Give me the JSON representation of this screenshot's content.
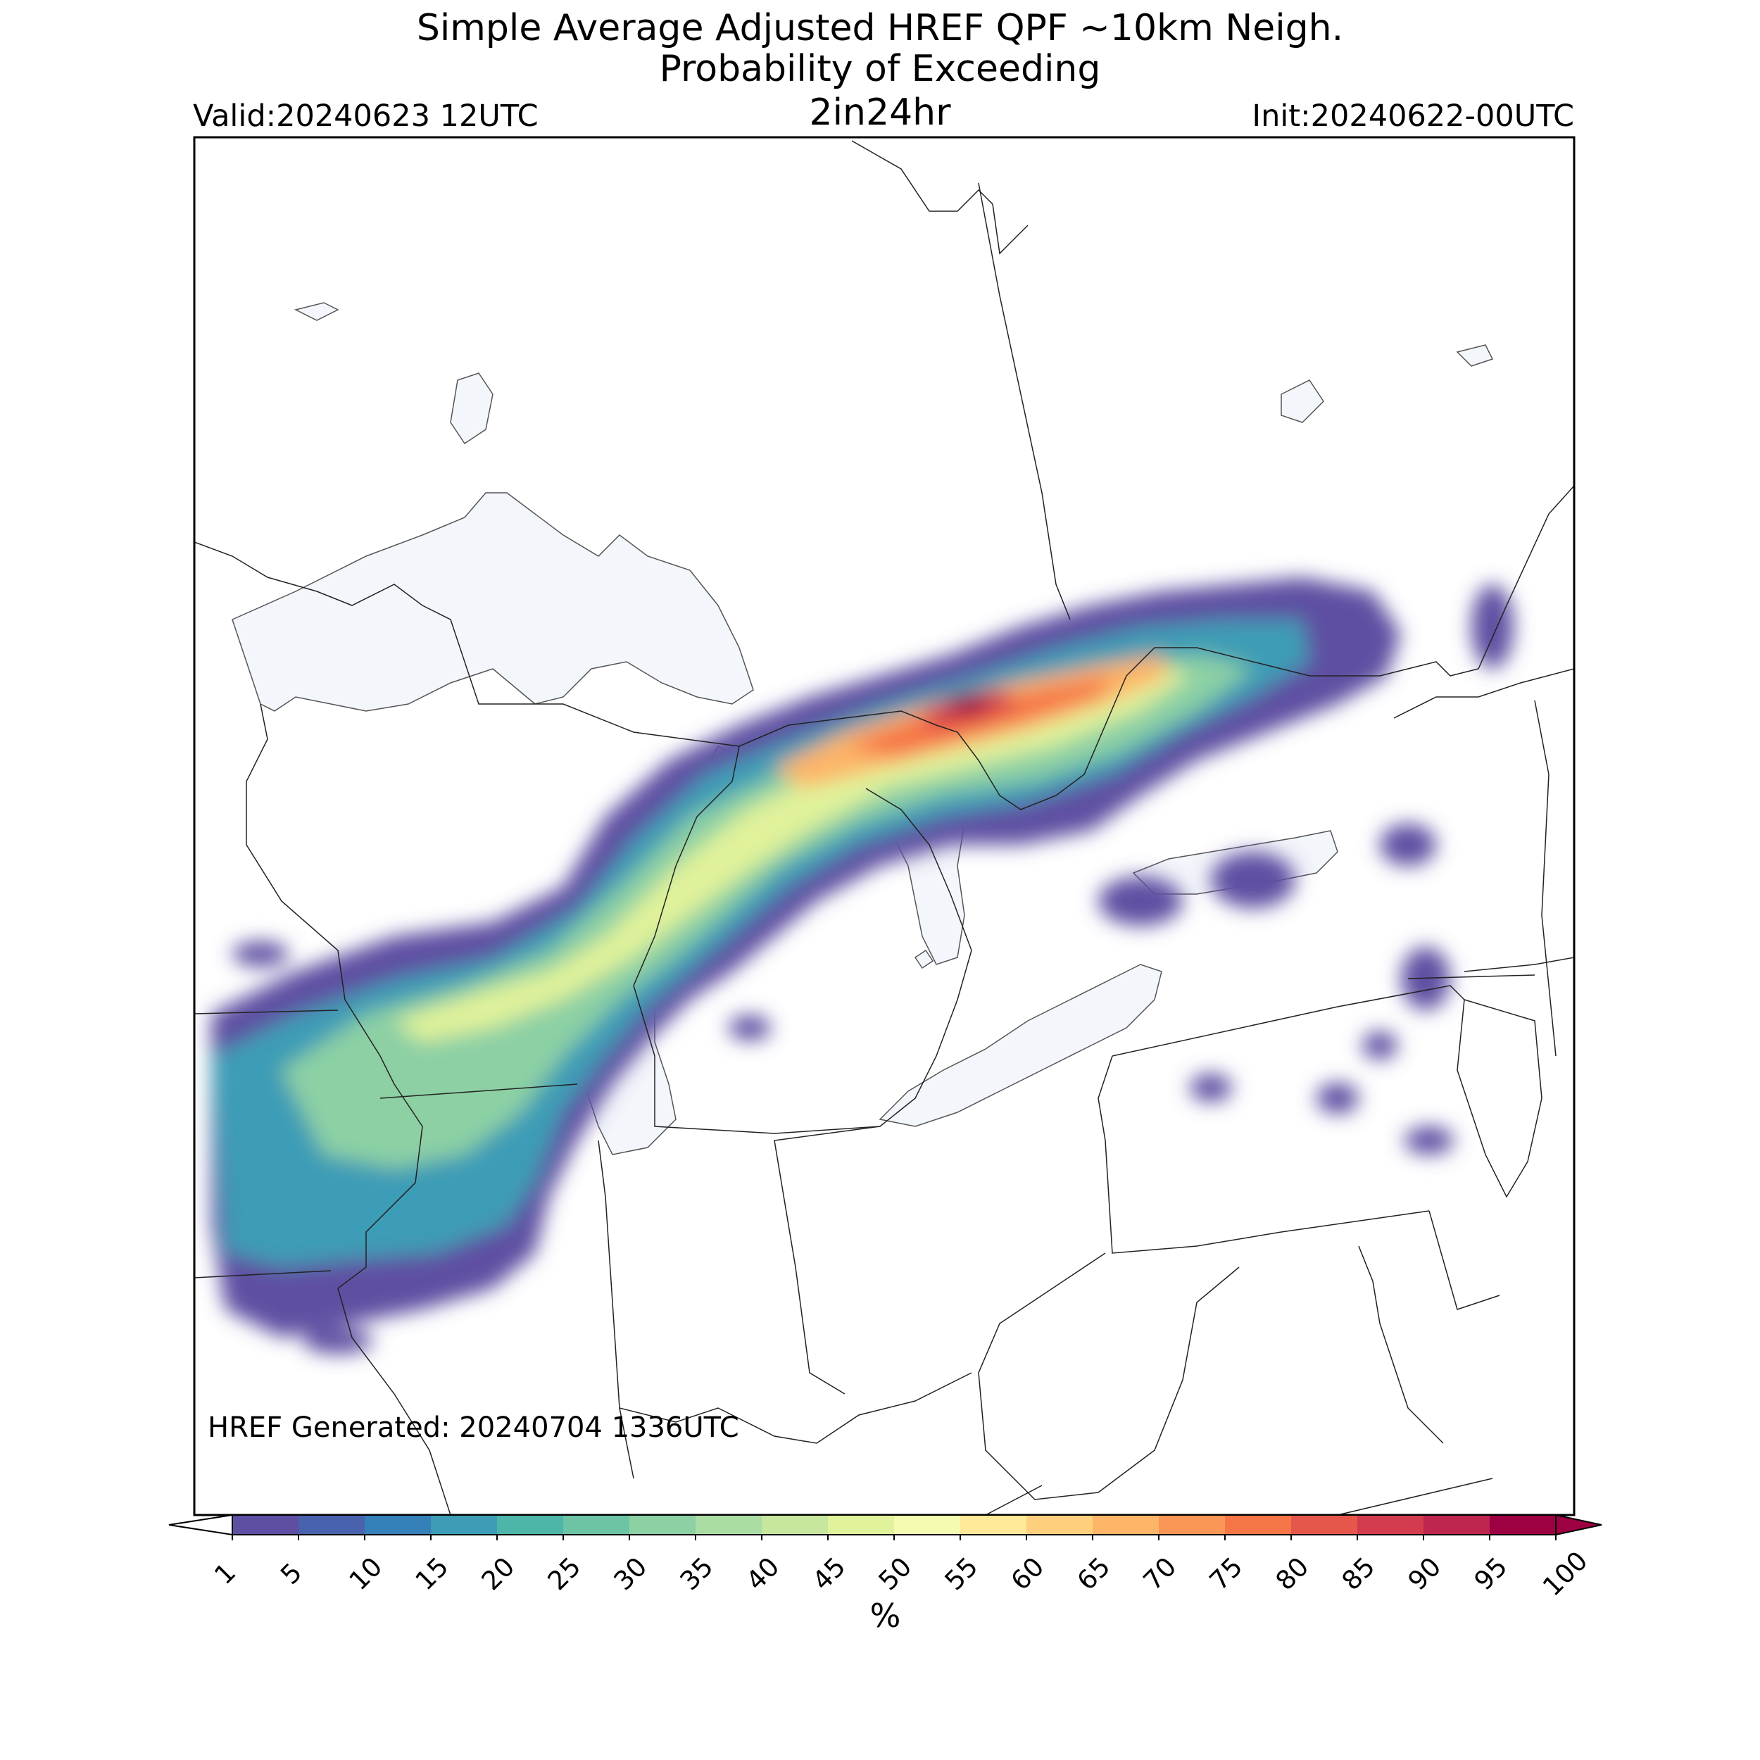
{
  "header": {
    "title_line1": "Simple Average Adjusted HREF QPF ~10km Neigh.",
    "title_line2": "Probability of Exceeding",
    "title_line3": "2in24hr",
    "valid": "Valid:20240623 12UTC",
    "init": "Init:20240622-00UTC"
  },
  "annotation": {
    "generated": "HREF Generated: 20240704 1336UTC"
  },
  "colorbar": {
    "label": "%",
    "ticks": [
      "1",
      "5",
      "10",
      "15",
      "20",
      "25",
      "30",
      "35",
      "40",
      "45",
      "50",
      "55",
      "60",
      "65",
      "70",
      "75",
      "80",
      "85",
      "90",
      "95",
      "100"
    ],
    "colors": [
      "#5e4fa2",
      "#4862ad",
      "#3580b9",
      "#3d9cb6",
      "#4db6a8",
      "#6cc4a5",
      "#8cd0a4",
      "#aadca4",
      "#c7e79f",
      "#e0f29a",
      "#f4faaf",
      "#fee999",
      "#fed07e",
      "#fdb567",
      "#fa9656",
      "#f57547",
      "#e5574b",
      "#d33c4e",
      "#be254f",
      "#9e0142"
    ]
  },
  "map": {
    "region": "Great Lakes / Northeast US",
    "water_color": "#f3f6fb",
    "border_color": "#333333"
  }
}
